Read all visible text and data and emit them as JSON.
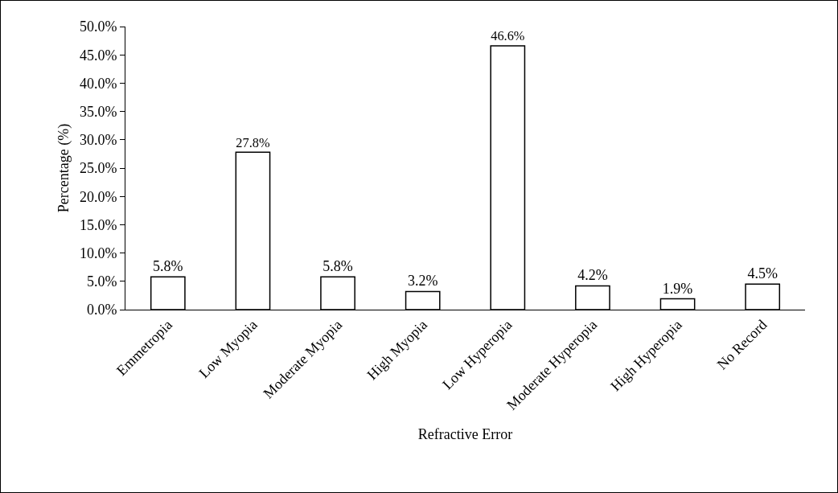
{
  "chart_data": {
    "type": "bar",
    "xlabel": "Refractive Error",
    "ylabel": "Percentage (%)",
    "categories": [
      "Emmetropia",
      "Low Myopia",
      "Moderate Myopia",
      "High Myopia",
      "Low Hyperopia",
      "Moderate Hyperopia",
      "High Hyperopia",
      "No Record"
    ],
    "values": [
      5.8,
      27.8,
      5.8,
      3.2,
      46.6,
      4.2,
      1.9,
      4.5
    ],
    "value_labels": [
      "5.8%",
      "27.8%",
      "5.8%",
      "3.2%",
      "46.6%",
      "4.2%",
      "1.9%",
      "4.5%"
    ],
    "color": "#ffffff",
    "ylim": [
      0,
      50
    ],
    "yticks": [
      {
        "value": 0,
        "label": "0.0%"
      },
      {
        "value": 5,
        "label": "5.0%"
      },
      {
        "value": 10,
        "label": "10.0%"
      },
      {
        "value": 15,
        "label": "15.0%"
      },
      {
        "value": 20,
        "label": "20.0%"
      },
      {
        "value": 25,
        "label": "25.0%"
      },
      {
        "value": 30,
        "label": "30.0%"
      },
      {
        "value": 35,
        "label": "35.0%"
      },
      {
        "value": 40,
        "label": "40.0%"
      },
      {
        "value": 45,
        "label": "45.0%"
      },
      {
        "value": 50,
        "label": "50.0%"
      }
    ],
    "grid": false,
    "legend": false
  }
}
